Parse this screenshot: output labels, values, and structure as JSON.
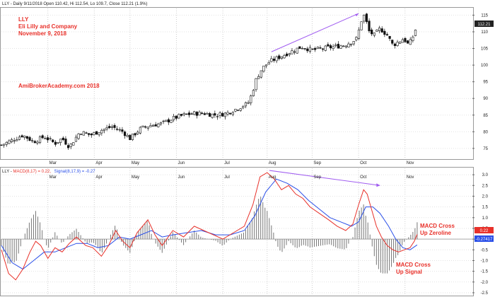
{
  "price_panel": {
    "header": "LLY - Daily 9/11/2018 Open 110.42, Hi 112.54, Lo 109.7, Close 112.21 (1.9%)",
    "annotations": [
      "LLY",
      "Eli Lilly and Company",
      "November 9, 2018"
    ],
    "watermark": "AmiBrokerAcademy.com  2018",
    "last_price_badge": "112.21",
    "trendline_color": "#a05cf0"
  },
  "macd_panel": {
    "header_prefix": "LLY - ",
    "header_macd": "MACD(8,17) = 0.22,",
    "header_signal": "Signal(8,17,9) = -0.27",
    "macd_color": "#e8312a",
    "signal_color": "#2a4fe8",
    "macd_badge": "0.22",
    "signal_badge": "-0.27417",
    "annotation_zero": [
      "MACD Cross",
      "Up Zeroline"
    ],
    "annotation_signal": [
      "MACD Cross",
      "Up Signal"
    ]
  },
  "chart_data": [
    {
      "type": "candlestick",
      "title": "LLY - Daily 9/11/2018 Open 110.42, Hi 112.54, Lo 109.7, Close 112.21 (1.9%)",
      "x_tick_labels": [
        "Mar",
        "Apr",
        "May",
        "Jun",
        "Jul",
        "Aug",
        "Sep",
        "Oct",
        "Nov"
      ],
      "y_ticks": [
        75,
        80,
        85,
        90,
        95,
        100,
        105,
        110,
        115
      ],
      "ylim": [
        72,
        117
      ],
      "close_path": [
        {
          "x": 0,
          "y": 76
        },
        {
          "x": 15,
          "y": 77.5
        },
        {
          "x": 30,
          "y": 79
        },
        {
          "x": 45,
          "y": 77
        },
        {
          "x": 60,
          "y": 78.5
        },
        {
          "x": 75,
          "y": 76.5
        },
        {
          "x": 85,
          "y": 78
        },
        {
          "x": 95,
          "y": 75.5
        },
        {
          "x": 110,
          "y": 80
        },
        {
          "x": 125,
          "y": 79
        },
        {
          "x": 140,
          "y": 80.5
        },
        {
          "x": 155,
          "y": 81.5
        },
        {
          "x": 170,
          "y": 80
        },
        {
          "x": 180,
          "y": 78
        },
        {
          "x": 195,
          "y": 81
        },
        {
          "x": 210,
          "y": 82
        },
        {
          "x": 225,
          "y": 82.5
        },
        {
          "x": 240,
          "y": 84
        },
        {
          "x": 255,
          "y": 85
        },
        {
          "x": 270,
          "y": 85.5
        },
        {
          "x": 285,
          "y": 85.5
        },
        {
          "x": 300,
          "y": 85
        },
        {
          "x": 315,
          "y": 85.5
        },
        {
          "x": 330,
          "y": 87
        },
        {
          "x": 345,
          "y": 88.5
        },
        {
          "x": 350,
          "y": 91
        },
        {
          "x": 357,
          "y": 96
        },
        {
          "x": 365,
          "y": 99
        },
        {
          "x": 375,
          "y": 101
        },
        {
          "x": 390,
          "y": 102.5
        },
        {
          "x": 405,
          "y": 104
        },
        {
          "x": 420,
          "y": 105.5
        },
        {
          "x": 435,
          "y": 104.5
        },
        {
          "x": 450,
          "y": 105
        },
        {
          "x": 465,
          "y": 105.5
        },
        {
          "x": 480,
          "y": 106
        },
        {
          "x": 490,
          "y": 107
        },
        {
          "x": 498,
          "y": 108
        },
        {
          "x": 503,
          "y": 113
        },
        {
          "x": 508,
          "y": 115
        },
        {
          "x": 515,
          "y": 110
        },
        {
          "x": 522,
          "y": 109
        },
        {
          "x": 530,
          "y": 111
        },
        {
          "x": 540,
          "y": 109
        },
        {
          "x": 548,
          "y": 106
        },
        {
          "x": 556,
          "y": 107
        },
        {
          "x": 563,
          "y": 108
        },
        {
          "x": 570,
          "y": 106
        },
        {
          "x": 577,
          "y": 109
        },
        {
          "x": 582,
          "y": 112.21
        }
      ],
      "trendline": [
        {
          "x": 378,
          "y": 104
        },
        {
          "x": 500,
          "y": 115.5
        }
      ]
    },
    {
      "type": "line+histogram",
      "title": "LLY - MACD(8,17) = 0.22, Signal(8,17,9) = -0.27",
      "x_tick_labels": [
        "Mar",
        "Apr",
        "May",
        "Jun",
        "Jul",
        "Aug",
        "Sep",
        "Oct",
        "Nov"
      ],
      "y_ticks": [
        -2.5,
        -2.0,
        -1.5,
        -1.0,
        -0.5,
        0.0,
        0.5,
        1.0,
        1.5,
        2.0,
        2.5,
        3.0
      ],
      "ylim": [
        -2.6,
        3.3
      ],
      "series": [
        {
          "name": "MACD(8,17)",
          "points": [
            {
              "x": 0,
              "y": -0.5
            },
            {
              "x": 10,
              "y": -1.6
            },
            {
              "x": 20,
              "y": -1.9
            },
            {
              "x": 30,
              "y": -1.4
            },
            {
              "x": 40,
              "y": -0.6
            },
            {
              "x": 48,
              "y": -0.1
            },
            {
              "x": 55,
              "y": -0.3
            },
            {
              "x": 65,
              "y": -0.9
            },
            {
              "x": 75,
              "y": -0.4
            },
            {
              "x": 85,
              "y": -0.6
            },
            {
              "x": 95,
              "y": -0.2
            },
            {
              "x": 105,
              "y": 0.1
            },
            {
              "x": 118,
              "y": -0.3
            },
            {
              "x": 128,
              "y": -0.4
            },
            {
              "x": 140,
              "y": -0.8
            },
            {
              "x": 150,
              "y": -0.3
            },
            {
              "x": 160,
              "y": 0.4
            },
            {
              "x": 170,
              "y": -0.1
            },
            {
              "x": 180,
              "y": -0.4
            },
            {
              "x": 190,
              "y": 0.3
            },
            {
              "x": 205,
              "y": 0.9
            },
            {
              "x": 215,
              "y": 0.2
            },
            {
              "x": 225,
              "y": -0.3
            },
            {
              "x": 240,
              "y": 0.4
            },
            {
              "x": 255,
              "y": 0.1
            },
            {
              "x": 270,
              "y": 0.6
            },
            {
              "x": 290,
              "y": 0.3
            },
            {
              "x": 310,
              "y": 0.0
            },
            {
              "x": 325,
              "y": 0.3
            },
            {
              "x": 340,
              "y": 0.6
            },
            {
              "x": 352,
              "y": 1.6
            },
            {
              "x": 362,
              "y": 2.9
            },
            {
              "x": 372,
              "y": 3.1
            },
            {
              "x": 382,
              "y": 2.8
            },
            {
              "x": 392,
              "y": 2.3
            },
            {
              "x": 402,
              "y": 2.5
            },
            {
              "x": 412,
              "y": 2.1
            },
            {
              "x": 422,
              "y": 1.9
            },
            {
              "x": 432,
              "y": 1.5
            },
            {
              "x": 445,
              "y": 1.2
            },
            {
              "x": 458,
              "y": 0.9
            },
            {
              "x": 470,
              "y": 0.6
            },
            {
              "x": 482,
              "y": 0.4
            },
            {
              "x": 492,
              "y": 0.7
            },
            {
              "x": 500,
              "y": 1.6
            },
            {
              "x": 507,
              "y": 2.3
            },
            {
              "x": 512,
              "y": 2.1
            },
            {
              "x": 518,
              "y": 1.4
            },
            {
              "x": 525,
              "y": 0.6
            },
            {
              "x": 532,
              "y": 0.1
            },
            {
              "x": 540,
              "y": -0.3
            },
            {
              "x": 548,
              "y": -0.5
            },
            {
              "x": 556,
              "y": -0.6
            },
            {
              "x": 564,
              "y": -0.5
            },
            {
              "x": 572,
              "y": -0.4
            },
            {
              "x": 578,
              "y": -0.1
            },
            {
              "x": 582,
              "y": 0.22
            }
          ]
        },
        {
          "name": "Signal(8,17,9)",
          "points": [
            {
              "x": 0,
              "y": -0.3
            },
            {
              "x": 15,
              "y": -1.1
            },
            {
              "x": 30,
              "y": -1.4
            },
            {
              "x": 45,
              "y": -1.0
            },
            {
              "x": 60,
              "y": -0.6
            },
            {
              "x": 75,
              "y": -0.6
            },
            {
              "x": 90,
              "y": -0.4
            },
            {
              "x": 105,
              "y": -0.2
            },
            {
              "x": 120,
              "y": -0.2
            },
            {
              "x": 135,
              "y": -0.4
            },
            {
              "x": 150,
              "y": -0.3
            },
            {
              "x": 165,
              "y": 0.1
            },
            {
              "x": 180,
              "y": 0.0
            },
            {
              "x": 195,
              "y": 0.2
            },
            {
              "x": 210,
              "y": 0.4
            },
            {
              "x": 225,
              "y": 0.1
            },
            {
              "x": 240,
              "y": 0.2
            },
            {
              "x": 260,
              "y": 0.3
            },
            {
              "x": 280,
              "y": 0.4
            },
            {
              "x": 300,
              "y": 0.2
            },
            {
              "x": 320,
              "y": 0.2
            },
            {
              "x": 340,
              "y": 0.4
            },
            {
              "x": 355,
              "y": 1.1
            },
            {
              "x": 370,
              "y": 2.2
            },
            {
              "x": 385,
              "y": 2.8
            },
            {
              "x": 400,
              "y": 2.6
            },
            {
              "x": 415,
              "y": 2.3
            },
            {
              "x": 430,
              "y": 1.8
            },
            {
              "x": 445,
              "y": 1.4
            },
            {
              "x": 460,
              "y": 1.0
            },
            {
              "x": 475,
              "y": 0.8
            },
            {
              "x": 490,
              "y": 0.6
            },
            {
              "x": 500,
              "y": 0.8
            },
            {
              "x": 510,
              "y": 1.5
            },
            {
              "x": 520,
              "y": 1.5
            },
            {
              "x": 530,
              "y": 1.2
            },
            {
              "x": 542,
              "y": 0.6
            },
            {
              "x": 552,
              "y": 0.0
            },
            {
              "x": 562,
              "y": -0.4
            },
            {
              "x": 572,
              "y": -0.5
            },
            {
              "x": 582,
              "y": -0.27
            }
          ]
        }
      ],
      "trendline": [
        {
          "x": 375,
          "y": 3.2
        },
        {
          "x": 530,
          "y": 2.5
        }
      ]
    }
  ]
}
